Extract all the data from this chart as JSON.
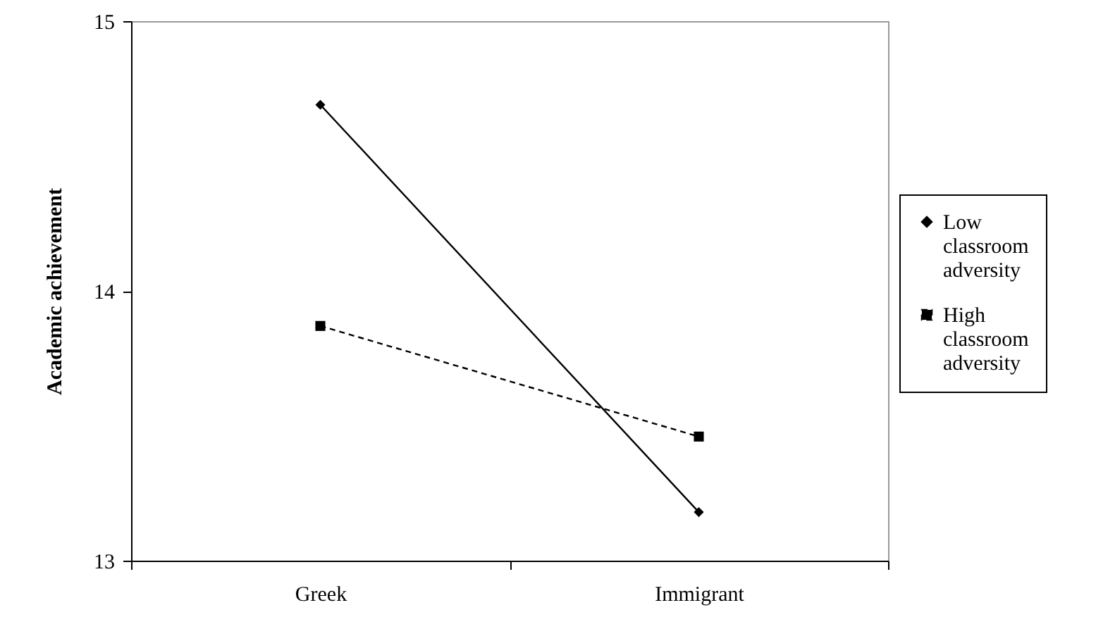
{
  "chart_data": {
    "type": "line",
    "ylabel": "Academic achievement",
    "categories": [
      "Greek",
      "Immigrant"
    ],
    "ylim": [
      13,
      15
    ],
    "yticks": [
      13,
      14,
      15
    ],
    "legend": "right",
    "series": [
      {
        "name": "Low classroom adversity",
        "color": "#000000",
        "marker": "diamond",
        "line_style": "solid",
        "values": [
          14.69,
          13.18
        ]
      },
      {
        "name": "High classroom adversity",
        "color": "#000000",
        "marker": "square",
        "line_style": "dashed",
        "values": [
          13.87,
          13.46
        ]
      }
    ]
  }
}
